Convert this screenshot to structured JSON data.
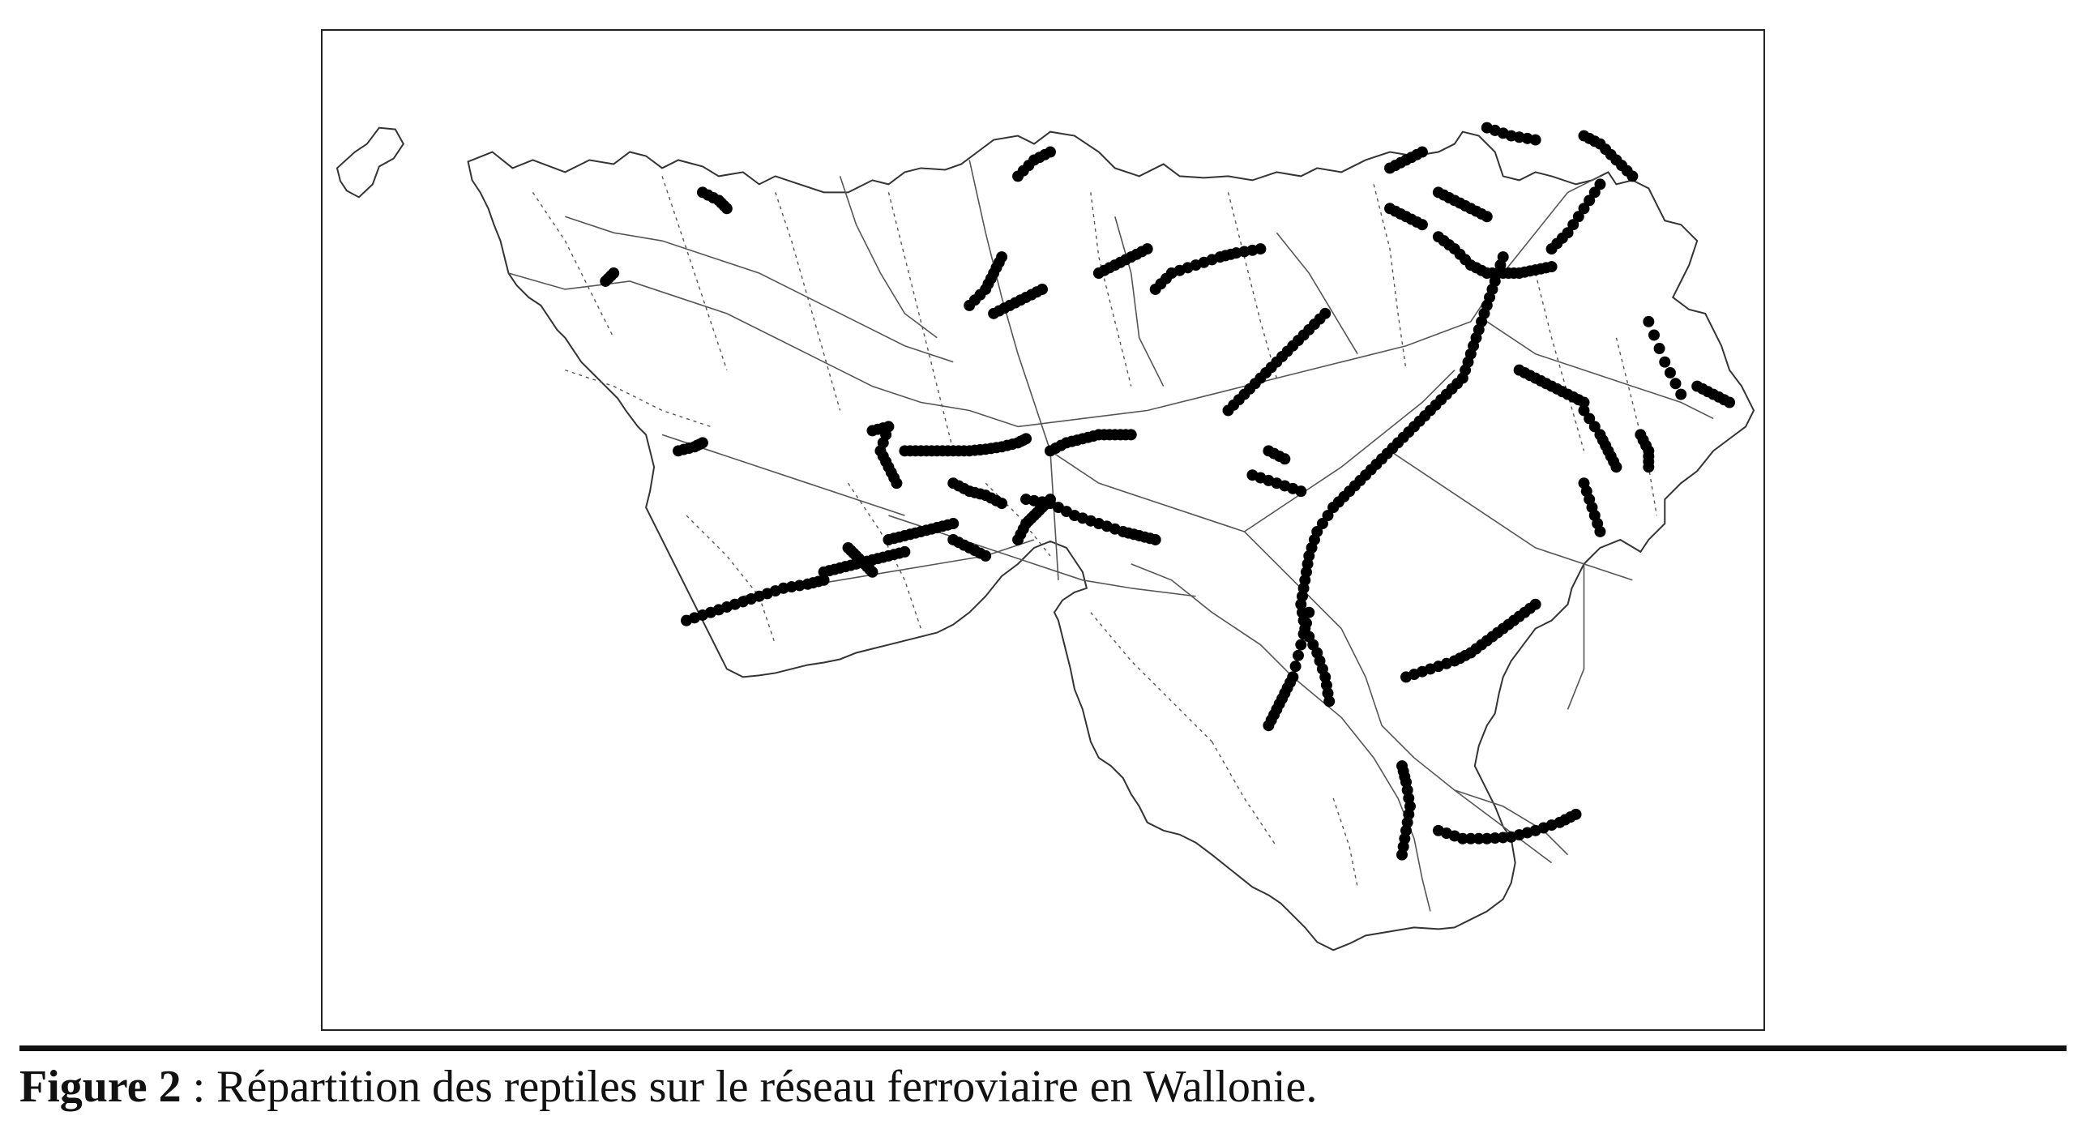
{
  "figure": {
    "label": "Figure 2",
    "separator": " : ",
    "caption": "Répartition des reptiles sur le réseau ferroviaire en Wallonie."
  },
  "map": {
    "region_outline_color": "#333333",
    "railway_color": "#555555",
    "dotted_boundary_color": "#555555",
    "observation_marker_color": "#000000",
    "marker_symbol": "filled-circle"
  }
}
